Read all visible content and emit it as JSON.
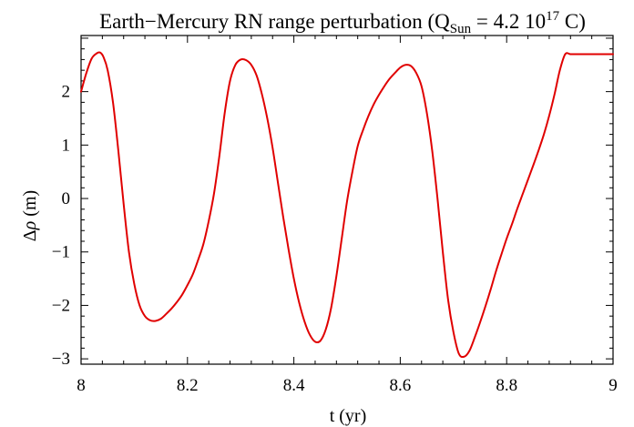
{
  "chart_data": {
    "type": "line",
    "title": {
      "prefix": "Earth−Mercury RN  range perturbation (Q",
      "subscript": "Sun",
      "middle": " = 4.2 10",
      "superscript": "17",
      "suffix": " C)"
    },
    "xlabel": "t (yr)",
    "ylabel": {
      "prefix": "Δ",
      "symbol": "ρ",
      "suffix": " (m)"
    },
    "xlim": [
      8.0,
      9.0
    ],
    "ylim": [
      -3.1,
      3.05
    ],
    "x_ticks": [
      8.0,
      8.2,
      8.4,
      8.6,
      8.8,
      9.0
    ],
    "x_tick_labels": [
      "8",
      "8.2",
      "8.4",
      "8.6",
      "8.8",
      "9"
    ],
    "y_ticks": [
      -3,
      -2,
      -1,
      0,
      1,
      2
    ],
    "y_tick_labels": [
      "−3",
      "−2",
      "−1",
      "0",
      "1",
      "2"
    ],
    "grid": false,
    "series": [
      {
        "color": "#e00000",
        "x": [
          8.0,
          8.01,
          8.02,
          8.03,
          8.036,
          8.042,
          8.05,
          8.06,
          8.07,
          8.08,
          8.09,
          8.1,
          8.11,
          8.12,
          8.13,
          8.14,
          8.15,
          8.16,
          8.17,
          8.18,
          8.19,
          8.2,
          8.21,
          8.22,
          8.23,
          8.24,
          8.25,
          8.26,
          8.27,
          8.28,
          8.29,
          8.3,
          8.31,
          8.32,
          8.33,
          8.34,
          8.35,
          8.36,
          8.37,
          8.38,
          8.39,
          8.4,
          8.41,
          8.42,
          8.43,
          8.44,
          8.45,
          8.46,
          8.47,
          8.48,
          8.49,
          8.5,
          8.51,
          8.52,
          8.53,
          8.54,
          8.55,
          8.56,
          8.57,
          8.58,
          8.59,
          8.6,
          8.61,
          8.62,
          8.63,
          8.64,
          8.65,
          8.66,
          8.67,
          8.68,
          8.69,
          8.7,
          8.71,
          8.72,
          8.73,
          8.74,
          8.75,
          8.76,
          8.77,
          8.78,
          8.79,
          8.8,
          8.81,
          8.82,
          8.83,
          8.84,
          8.85,
          8.86,
          8.87,
          8.88,
          8.89,
          8.9,
          8.91,
          8.92,
          8.93,
          8.94,
          8.95,
          8.96,
          8.97,
          8.98,
          8.99,
          9.0
        ],
        "y": [
          2.0,
          2.35,
          2.62,
          2.72,
          2.73,
          2.65,
          2.4,
          1.8,
          0.9,
          -0.1,
          -1.0,
          -1.6,
          -2.0,
          -2.2,
          -2.28,
          -2.29,
          -2.25,
          -2.16,
          -2.06,
          -1.94,
          -1.8,
          -1.62,
          -1.42,
          -1.15,
          -0.85,
          -0.42,
          0.1,
          0.8,
          1.6,
          2.2,
          2.5,
          2.6,
          2.59,
          2.5,
          2.3,
          1.95,
          1.5,
          0.95,
          0.3,
          -0.35,
          -0.95,
          -1.5,
          -1.95,
          -2.3,
          -2.55,
          -2.68,
          -2.66,
          -2.45,
          -2.05,
          -1.45,
          -0.75,
          -0.05,
          0.5,
          0.98,
          1.28,
          1.54,
          1.76,
          1.94,
          2.1,
          2.24,
          2.35,
          2.45,
          2.5,
          2.48,
          2.35,
          2.1,
          1.6,
          0.9,
          0.0,
          -1.0,
          -1.9,
          -2.5,
          -2.9,
          -2.96,
          -2.85,
          -2.6,
          -2.32,
          -2.02,
          -1.7,
          -1.36,
          -1.05,
          -0.75,
          -0.48,
          -0.19,
          0.08,
          0.35,
          0.62,
          0.9,
          1.2,
          1.55,
          1.95,
          2.4,
          2.7,
          2.7,
          2.7,
          2.7,
          2.7,
          2.7,
          2.7,
          2.7,
          2.7,
          2.7
        ]
      }
    ]
  }
}
